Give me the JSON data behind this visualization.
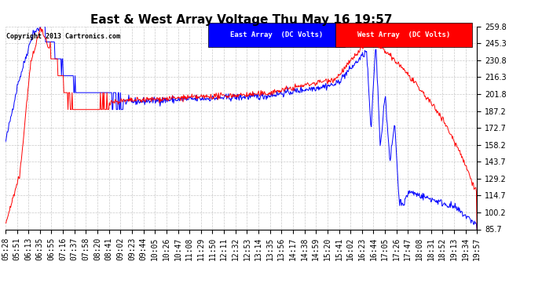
{
  "title": "East & West Array Voltage Thu May 16 19:57",
  "copyright": "Copyright 2013 Cartronics.com",
  "legend_entries": [
    "East Array  (DC Volts)",
    "West Array  (DC Volts)"
  ],
  "line_colors": [
    "#0000ff",
    "#ff0000"
  ],
  "ylim": [
    85.7,
    259.8
  ],
  "yticks": [
    85.7,
    100.2,
    114.7,
    129.2,
    143.7,
    158.2,
    172.7,
    187.2,
    201.8,
    216.3,
    230.8,
    245.3,
    259.8
  ],
  "background_color": "#ffffff",
  "grid_color": "#bbbbbb",
  "title_fontsize": 11,
  "tick_fontsize": 7,
  "x_labels": [
    "05:28",
    "05:51",
    "06:13",
    "06:35",
    "06:55",
    "07:16",
    "07:37",
    "07:58",
    "08:20",
    "08:41",
    "09:02",
    "09:23",
    "09:44",
    "10:05",
    "10:26",
    "10:47",
    "11:08",
    "11:29",
    "11:50",
    "12:11",
    "12:32",
    "12:53",
    "13:14",
    "13:35",
    "13:56",
    "14:17",
    "14:38",
    "14:59",
    "15:20",
    "15:41",
    "16:02",
    "16:23",
    "16:44",
    "17:05",
    "17:26",
    "17:47",
    "18:08",
    "18:31",
    "18:52",
    "19:13",
    "19:34",
    "19:57"
  ]
}
